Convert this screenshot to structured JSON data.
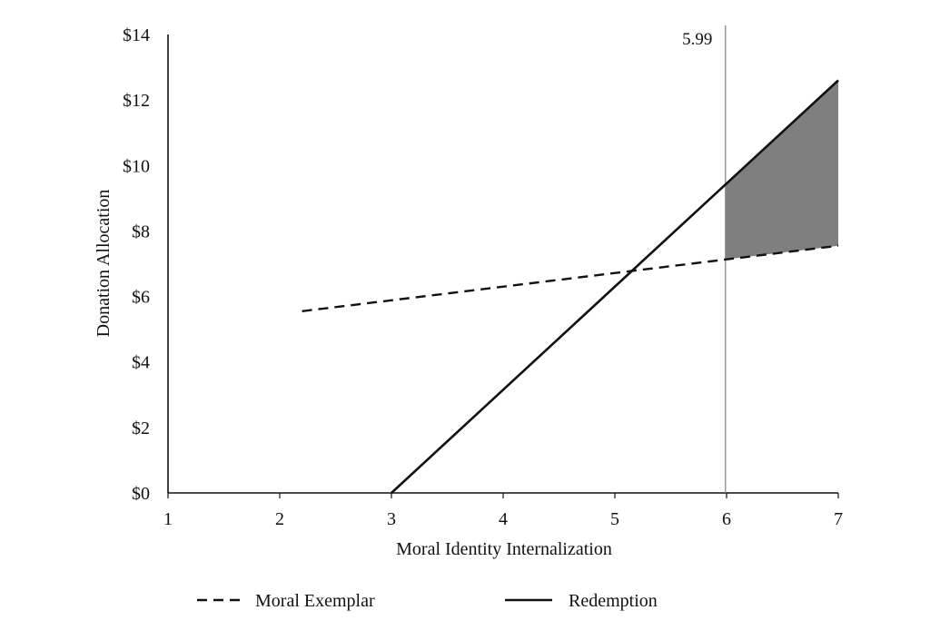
{
  "chart_data": {
    "type": "line",
    "title": "",
    "xlabel": "Moral Identity Internalization",
    "ylabel": "Donation Allocation",
    "xlim": [
      1,
      7
    ],
    "ylim": [
      0,
      14
    ],
    "x_ticks": [
      "1",
      "2",
      "3",
      "4",
      "5",
      "6",
      "7"
    ],
    "y_ticks": [
      "$0",
      "$2",
      "$4",
      "$6",
      "$8",
      "$10",
      "$12",
      "$14"
    ],
    "grid": false,
    "legend_position": "bottom",
    "series": [
      {
        "name": "Moral Exemplar",
        "style": "dashed",
        "color": "#111111",
        "x": [
          2.2,
          7
        ],
        "y": [
          5.55,
          7.55
        ]
      },
      {
        "name": "Redemption",
        "style": "solid",
        "color": "#111111",
        "x": [
          3,
          7
        ],
        "y": [
          0,
          12.6
        ]
      }
    ],
    "annotations": [
      {
        "type": "vline",
        "x": 5.99,
        "label": "5.99",
        "color": "#8a8a8a"
      },
      {
        "type": "shaded_region",
        "x_from": 5.99,
        "x_to": 7,
        "between": [
          "Moral Exemplar",
          "Redemption"
        ],
        "color": "#7f7f7f"
      }
    ]
  }
}
